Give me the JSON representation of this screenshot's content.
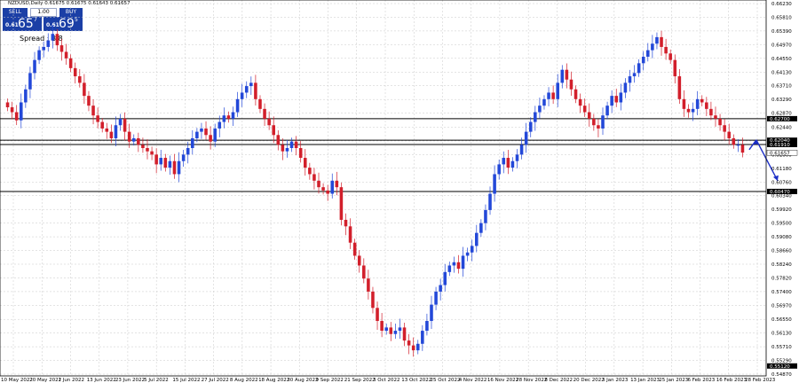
{
  "title": "NZDUSD,Daily  0.61675 0.61675 0.61643 0.61657",
  "panel": {
    "sell_label": "SELL",
    "buy_label": "BUY",
    "lot": "1.00",
    "sell_prefix": "0.61",
    "sell_big": "65",
    "sell_sup": "7",
    "buy_prefix": "0.61",
    "buy_big": "69",
    "buy_sup": "5",
    "spread_label": "Spread : 3.8"
  },
  "colors": {
    "bull": "#2348d8",
    "bear": "#d21f2b",
    "grid": "#c8c8c8",
    "level_line": "#000000",
    "arrow": "#1c2fc7"
  },
  "chart_data": {
    "type": "candlestick",
    "symbol": "NZDUSD",
    "timeframe": "Daily",
    "y_ticks": [
      "0.66230",
      "0.65810",
      "0.65390",
      "0.64970",
      "0.64550",
      "0.64130",
      "0.63710",
      "0.63290",
      "0.62870",
      "0.62440",
      "0.62020",
      "0.61600",
      "0.61180",
      "0.60760",
      "0.60340",
      "0.59920",
      "0.59500",
      "0.59080",
      "0.58660",
      "0.58240",
      "0.57820",
      "0.57400",
      "0.56970",
      "0.56550",
      "0.56130",
      "0.55710",
      "0.55290",
      "0.54870"
    ],
    "ylim": [
      0.5487,
      0.6623
    ],
    "x_ticks": [
      "10 May 2022",
      "20 May 2022",
      "1 Jun 2022",
      "13 Jun 2022",
      "23 Jun 2022",
      "5 Jul 2022",
      "15 Jul 2022",
      "27 Jul 2022",
      "8 Aug 2022",
      "18 Aug 2022",
      "30 Aug 2022",
      "9 Sep 2022",
      "21 Sep 2022",
      "3 Oct 2022",
      "13 Oct 2022",
      "25 Oct 2022",
      "4 Nov 2022",
      "16 Nov 2022",
      "28 Nov 2022",
      "8 Dec 2022",
      "20 Dec 2022",
      "3 Jan 2023",
      "13 Jan 2023",
      "25 Jan 2023",
      "6 Feb 2023",
      "16 Feb 2023",
      "28 Feb 2023"
    ],
    "horizontal_levels": [
      {
        "price": 0.627,
        "label": "0.62700"
      },
      {
        "price": 0.6204,
        "label": "0.62040"
      },
      {
        "price": 0.6191,
        "label": "0.61910"
      },
      {
        "price": 0.6047,
        "label": "0.60470"
      }
    ],
    "current_price": {
      "price": 0.61657,
      "label": "0.61657"
    },
    "bottom_label": {
      "price": 0.5512,
      "label": "0.55120"
    },
    "closes": [
      0.6305,
      0.629,
      0.6265,
      0.632,
      0.636,
      0.641,
      0.645,
      0.648,
      0.649,
      0.651,
      0.653,
      0.6495,
      0.6475,
      0.6455,
      0.6425,
      0.64,
      0.638,
      0.634,
      0.631,
      0.628,
      0.626,
      0.624,
      0.623,
      0.621,
      0.625,
      0.627,
      0.623,
      0.62,
      0.621,
      0.619,
      0.618,
      0.617,
      0.616,
      0.613,
      0.615,
      0.612,
      0.614,
      0.61,
      0.614,
      0.616,
      0.618,
      0.621,
      0.623,
      0.624,
      0.622,
      0.62,
      0.624,
      0.626,
      0.628,
      0.627,
      0.629,
      0.633,
      0.635,
      0.637,
      0.638,
      0.633,
      0.63,
      0.627,
      0.625,
      0.622,
      0.619,
      0.617,
      0.618,
      0.62,
      0.618,
      0.615,
      0.612,
      0.61,
      0.608,
      0.606,
      0.605,
      0.604,
      0.608,
      0.606,
      0.596,
      0.594,
      0.589,
      0.585,
      0.582,
      0.578,
      0.574,
      0.569,
      0.565,
      0.562,
      0.563,
      0.561,
      0.562,
      0.563,
      0.559,
      0.5575,
      0.556,
      0.558,
      0.562,
      0.565,
      0.57,
      0.574,
      0.576,
      0.58,
      0.582,
      0.583,
      0.581,
      0.585,
      0.586,
      0.588,
      0.592,
      0.595,
      0.599,
      0.604,
      0.61,
      0.613,
      0.615,
      0.612,
      0.614,
      0.616,
      0.619,
      0.623,
      0.626,
      0.629,
      0.631,
      0.633,
      0.635,
      0.633,
      0.638,
      0.642,
      0.639,
      0.636,
      0.633,
      0.631,
      0.629,
      0.627,
      0.625,
      0.624,
      0.628,
      0.631,
      0.634,
      0.632,
      0.635,
      0.638,
      0.64,
      0.641,
      0.644,
      0.646,
      0.648,
      0.65,
      0.652,
      0.649,
      0.647,
      0.645,
      0.64,
      0.633,
      0.63,
      0.629,
      0.63,
      0.633,
      0.632,
      0.63,
      0.628,
      0.627,
      0.625,
      0.623,
      0.621,
      0.619,
      0.619,
      0.6166
    ],
    "annotation": {
      "type": "arrow",
      "from_price": 0.6175,
      "peak_price": 0.6205,
      "to_price": 0.608
    }
  }
}
